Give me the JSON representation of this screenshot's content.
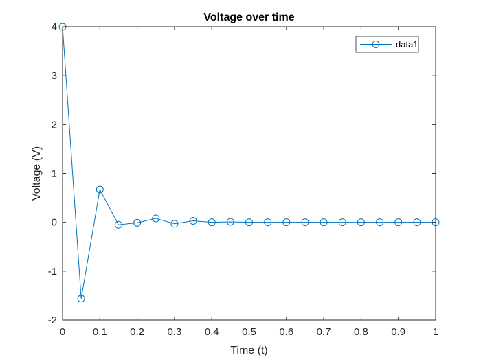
{
  "chart_data": {
    "type": "line",
    "title": "Voltage over time",
    "xlabel": "Time (t)",
    "ylabel": "Voltage (V)",
    "xlim": [
      0,
      1
    ],
    "ylim": [
      -2,
      4
    ],
    "xticks": [
      0,
      0.1,
      0.2,
      0.3,
      0.4,
      0.5,
      0.6,
      0.7,
      0.8,
      0.9,
      1
    ],
    "xtick_labels": [
      "0",
      "0.1",
      "0.2",
      "0.3",
      "0.4",
      "0.5",
      "0.6",
      "0.7",
      "0.8",
      "0.9",
      "1"
    ],
    "yticks": [
      -2,
      -1,
      0,
      1,
      2,
      3,
      4
    ],
    "ytick_labels": [
      "-2",
      "-1",
      "0",
      "1",
      "2",
      "3",
      "4"
    ],
    "grid": false,
    "legend_position": "top-right",
    "colors": {
      "series": "#0072BD",
      "axes": "#262626"
    },
    "series": [
      {
        "name": "data1",
        "marker": "circle",
        "x": [
          0,
          0.05,
          0.1,
          0.15,
          0.2,
          0.25,
          0.3,
          0.35,
          0.4,
          0.45,
          0.5,
          0.55,
          0.6,
          0.65,
          0.7,
          0.75,
          0.8,
          0.85,
          0.9,
          0.95,
          1
        ],
        "y": [
          4,
          -1.56,
          0.67,
          -0.05,
          -0.01,
          0.08,
          -0.03,
          0.03,
          0,
          0.01,
          0,
          0,
          0,
          0,
          0,
          0,
          0,
          0,
          0,
          0,
          0
        ]
      }
    ]
  }
}
